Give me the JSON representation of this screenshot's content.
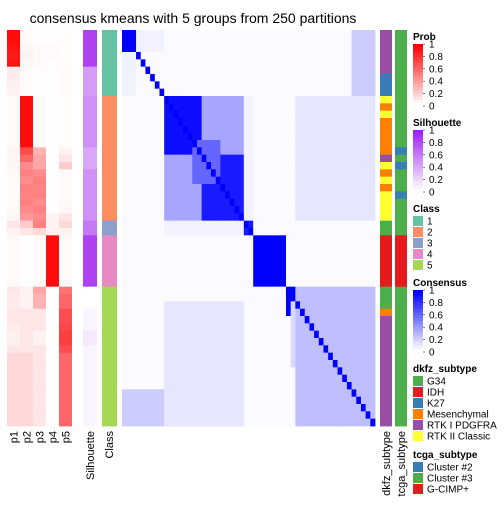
{
  "chart_data": {
    "type": "heatmap",
    "title": "consensus kmeans with 5 groups from 250 partitions",
    "prob_columns": [
      "p1",
      "p2",
      "p3",
      "p4",
      "p5"
    ],
    "annotation_columns": [
      "Silhouette",
      "Class",
      "dkfz_subtype",
      "tcga_subtype"
    ],
    "rows": 54,
    "class_groups": [
      {
        "class": "1",
        "start": 0,
        "end": 9
      },
      {
        "class": "2",
        "start": 9,
        "end": 26
      },
      {
        "class": "3",
        "start": 26,
        "end": 28
      },
      {
        "class": "4",
        "start": 28,
        "end": 35
      },
      {
        "class": "5",
        "start": 35,
        "end": 54
      }
    ],
    "row_class": [
      1,
      1,
      1,
      1,
      1,
      1,
      1,
      1,
      1,
      2,
      2,
      2,
      2,
      2,
      2,
      2,
      2,
      2,
      2,
      2,
      2,
      2,
      2,
      2,
      2,
      2,
      3,
      3,
      4,
      4,
      4,
      4,
      4,
      4,
      4,
      5,
      5,
      5,
      5,
      5,
      5,
      5,
      5,
      5,
      5,
      5,
      5,
      5,
      5,
      5,
      5,
      5,
      5,
      5
    ],
    "row_prob": [
      [
        0.95,
        0.02,
        0.01,
        0.01,
        0.01
      ],
      [
        0.95,
        0.02,
        0.01,
        0.01,
        0.01
      ],
      [
        0.92,
        0.03,
        0.02,
        0.02,
        0.01
      ],
      [
        0.9,
        0.05,
        0.02,
        0.02,
        0.01
      ],
      [
        0.92,
        0.04,
        0.02,
        0.01,
        0.01
      ],
      [
        0.08,
        0.02,
        0.01,
        0.01,
        0.02
      ],
      [
        0.08,
        0.02,
        0.01,
        0.01,
        0.02
      ],
      [
        0.06,
        0.02,
        0.01,
        0.01,
        0.02
      ],
      [
        0.05,
        0.02,
        0.01,
        0.01,
        0.02
      ],
      [
        0.02,
        0.95,
        0.02,
        0.0,
        0.01
      ],
      [
        0.02,
        0.95,
        0.02,
        0.0,
        0.01
      ],
      [
        0.02,
        0.95,
        0.02,
        0.0,
        0.01
      ],
      [
        0.02,
        0.95,
        0.02,
        0.0,
        0.01
      ],
      [
        0.02,
        0.95,
        0.02,
        0.0,
        0.01
      ],
      [
        0.02,
        0.95,
        0.02,
        0.0,
        0.01
      ],
      [
        0.02,
        0.95,
        0.02,
        0.0,
        0.01
      ],
      [
        0.05,
        0.7,
        0.3,
        0.0,
        0.05
      ],
      [
        0.04,
        0.6,
        0.35,
        0.0,
        0.1
      ],
      [
        0.03,
        0.45,
        0.35,
        0.0,
        0.2
      ],
      [
        0.02,
        0.5,
        0.45,
        0.0,
        0.02
      ],
      [
        0.02,
        0.45,
        0.5,
        0.0,
        0.02
      ],
      [
        0.02,
        0.5,
        0.48,
        0.0,
        0.02
      ],
      [
        0.02,
        0.48,
        0.5,
        0.0,
        0.02
      ],
      [
        0.02,
        0.5,
        0.45,
        0.0,
        0.02
      ],
      [
        0.02,
        0.45,
        0.5,
        0.0,
        0.03
      ],
      [
        0.03,
        0.4,
        0.45,
        0.05,
        0.1
      ],
      [
        0.1,
        0.2,
        0.5,
        0.05,
        0.15
      ],
      [
        0.05,
        0.1,
        0.15,
        0.05,
        0.05
      ],
      [
        0.02,
        0.0,
        0.02,
        0.95,
        0.02
      ],
      [
        0.02,
        0.0,
        0.02,
        0.95,
        0.02
      ],
      [
        0.02,
        0.0,
        0.02,
        0.95,
        0.02
      ],
      [
        0.02,
        0.0,
        0.02,
        0.95,
        0.02
      ],
      [
        0.02,
        0.0,
        0.02,
        0.95,
        0.02
      ],
      [
        0.02,
        0.0,
        0.02,
        0.95,
        0.02
      ],
      [
        0.02,
        0.0,
        0.02,
        0.95,
        0.02
      ],
      [
        0.1,
        0.05,
        0.35,
        0.0,
        0.55
      ],
      [
        0.08,
        0.05,
        0.3,
        0.0,
        0.6
      ],
      [
        0.08,
        0.05,
        0.3,
        0.0,
        0.6
      ],
      [
        0.1,
        0.1,
        0.1,
        0.0,
        0.7
      ],
      [
        0.1,
        0.1,
        0.1,
        0.0,
        0.7
      ],
      [
        0.08,
        0.1,
        0.1,
        0.0,
        0.72
      ],
      [
        0.06,
        0.1,
        0.05,
        0.0,
        0.75
      ],
      [
        0.06,
        0.1,
        0.05,
        0.0,
        0.75
      ],
      [
        0.1,
        0.1,
        0.1,
        0.0,
        0.7
      ],
      [
        0.15,
        0.15,
        0.1,
        0.0,
        0.6
      ],
      [
        0.15,
        0.15,
        0.1,
        0.0,
        0.6
      ],
      [
        0.15,
        0.15,
        0.1,
        0.0,
        0.6
      ],
      [
        0.15,
        0.15,
        0.1,
        0.0,
        0.6
      ],
      [
        0.15,
        0.15,
        0.1,
        0.0,
        0.6
      ],
      [
        0.15,
        0.15,
        0.1,
        0.0,
        0.6
      ],
      [
        0.15,
        0.15,
        0.1,
        0.0,
        0.6
      ],
      [
        0.15,
        0.15,
        0.1,
        0.0,
        0.6
      ],
      [
        0.15,
        0.15,
        0.1,
        0.0,
        0.6
      ],
      [
        0.15,
        0.15,
        0.1,
        0.0,
        0.6
      ]
    ],
    "row_silhouette": [
      0.85,
      0.85,
      0.85,
      0.85,
      0.85,
      0.45,
      0.45,
      0.45,
      0.45,
      0.5,
      0.5,
      0.5,
      0.5,
      0.5,
      0.5,
      0.5,
      0.4,
      0.4,
      0.4,
      0.5,
      0.5,
      0.5,
      0.5,
      0.5,
      0.5,
      0.5,
      0.6,
      0.6,
      0.85,
      0.85,
      0.85,
      0.85,
      0.85,
      0.85,
      0.85,
      0.0,
      0.0,
      0.0,
      0.05,
      0.05,
      0.05,
      0.1,
      0.1,
      0.05,
      0.05,
      0.05,
      0.05,
      0.05,
      0.05,
      0.05,
      0.05,
      0.05,
      0.05,
      0.05
    ],
    "row_dkfz": [
      "RTK I PDGFRA",
      "RTK I PDGFRA",
      "RTK I PDGFRA",
      "RTK I PDGFRA",
      "RTK I PDGFRA",
      "RTK I PDGFRA",
      "K27",
      "K27",
      "K27",
      "RTK II Classic",
      "Mesenchymal",
      "RTK II Classic",
      "Mesenchymal",
      "Mesenchymal",
      "Mesenchymal",
      "Mesenchymal",
      "Mesenchymal",
      "RTK I PDGFRA",
      "RTK II Classic",
      "Mesenchymal",
      "RTK II Classic",
      "Mesenchymal",
      "RTK II Classic",
      "RTK II Classic",
      "RTK II Classic",
      "RTK II Classic",
      "G34",
      "G34",
      "IDH",
      "IDH",
      "IDH",
      "IDH",
      "IDH",
      "IDH",
      "IDH",
      "G34",
      "G34",
      "G34",
      "Mesenchymal",
      "RTK I PDGFRA",
      "RTK I PDGFRA",
      "RTK I PDGFRA",
      "RTK I PDGFRA",
      "RTK I PDGFRA",
      "RTK I PDGFRA",
      "RTK I PDGFRA",
      "RTK I PDGFRA",
      "RTK I PDGFRA",
      "RTK I PDGFRA",
      "RTK I PDGFRA",
      "RTK I PDGFRA",
      "RTK I PDGFRA",
      "RTK I PDGFRA",
      "RTK I PDGFRA"
    ],
    "row_tcga": [
      "Cluster #3",
      "Cluster #3",
      "Cluster #3",
      "Cluster #3",
      "Cluster #3",
      "Cluster #3",
      "Cluster #3",
      "Cluster #3",
      "Cluster #3",
      "Cluster #3",
      "Cluster #3",
      "Cluster #3",
      "Cluster #3",
      "Cluster #3",
      "Cluster #3",
      "Cluster #3",
      "Cluster #2",
      "Cluster #3",
      "Cluster #2",
      "Cluster #3",
      "Cluster #3",
      "Cluster #3",
      "Cluster #2",
      "Cluster #3",
      "Cluster #3",
      "Cluster #3",
      "Cluster #3",
      "Cluster #3",
      "G-CIMP+",
      "G-CIMP+",
      "G-CIMP+",
      "G-CIMP+",
      "G-CIMP+",
      "G-CIMP+",
      "G-CIMP+",
      "Cluster #3",
      "Cluster #3",
      "Cluster #3",
      "Cluster #3",
      "Cluster #3",
      "Cluster #3",
      "Cluster #3",
      "Cluster #3",
      "Cluster #3",
      "Cluster #3",
      "Cluster #3",
      "Cluster #3",
      "Cluster #3",
      "Cluster #3",
      "Cluster #3",
      "Cluster #3",
      "Cluster #3",
      "Cluster #3",
      "Cluster #3"
    ],
    "consensus_blocks": [
      {
        "rows": [
          0,
          3
        ],
        "cols": [
          0,
          3
        ],
        "value": 1.0
      },
      {
        "rows": [
          0,
          3
        ],
        "cols": [
          3,
          9
        ],
        "value": 0.05
      },
      {
        "rows": [
          3,
          9
        ],
        "cols": [
          0,
          3
        ],
        "value": 0.05
      },
      {
        "rows": [
          0,
          9
        ],
        "cols": [
          49,
          54
        ],
        "value": 0.2
      },
      {
        "rows": [
          49,
          54
        ],
        "cols": [
          0,
          9
        ],
        "value": 0.2
      },
      {
        "rows": [
          9,
          17
        ],
        "cols": [
          9,
          17
        ],
        "value": 0.95
      },
      {
        "rows": [
          9,
          17
        ],
        "cols": [
          17,
          26
        ],
        "value": 0.35
      },
      {
        "rows": [
          17,
          26
        ],
        "cols": [
          9,
          17
        ],
        "value": 0.35
      },
      {
        "rows": [
          17,
          26
        ],
        "cols": [
          17,
          26
        ],
        "value": 0.9
      },
      {
        "rows": [
          15,
          21
        ],
        "cols": [
          15,
          21
        ],
        "value": 0.6
      },
      {
        "rows": [
          9,
          26
        ],
        "cols": [
          37,
          54
        ],
        "value": 0.1
      },
      {
        "rows": [
          37,
          54
        ],
        "cols": [
          9,
          26
        ],
        "value": 0.1
      },
      {
        "rows": [
          26,
          28
        ],
        "cols": [
          26,
          28
        ],
        "value": 0.9
      },
      {
        "rows": [
          26,
          28
        ],
        "cols": [
          9,
          26
        ],
        "value": 0.05
      },
      {
        "rows": [
          9,
          26
        ],
        "cols": [
          26,
          28
        ],
        "value": 0.05
      },
      {
        "rows": [
          28,
          35
        ],
        "cols": [
          28,
          35
        ],
        "value": 1.0
      },
      {
        "rows": [
          35,
          39
        ],
        "cols": [
          35,
          39
        ],
        "value": 1.0
      },
      {
        "rows": [
          39,
          54
        ],
        "cols": [
          39,
          54
        ],
        "value": 0.3
      },
      {
        "rows": [
          36,
          46
        ],
        "cols": [
          36,
          46
        ],
        "value": 0.15
      },
      {
        "rows": [
          35,
          54
        ],
        "cols": [
          37,
          54
        ],
        "value": 0.25
      }
    ],
    "consensus_diagonal_value": 1.0,
    "legends": {
      "prob": {
        "title": "Prob",
        "ticks": [
          "1",
          "0.8",
          "0.6",
          "0.4",
          "0.2",
          "0"
        ]
      },
      "silhouette": {
        "title": "Silhouette",
        "ticks": [
          "1",
          "0.8",
          "0.6",
          "0.4",
          "0.2",
          "0"
        ]
      },
      "class": {
        "title": "Class",
        "items": [
          {
            "label": "1",
            "color": "#66c2a5"
          },
          {
            "label": "2",
            "color": "#fc8d62"
          },
          {
            "label": "3",
            "color": "#8da0cb"
          },
          {
            "label": "4",
            "color": "#e78ac3"
          },
          {
            "label": "5",
            "color": "#a6d854"
          }
        ]
      },
      "consensus": {
        "title": "Consensus",
        "ticks": [
          "1",
          "0.8",
          "0.6",
          "0.4",
          "0.2",
          "0"
        ]
      },
      "dkfz_subtype": {
        "title": "dkfz_subtype",
        "items": [
          {
            "label": "G34",
            "color": "#4daf4a"
          },
          {
            "label": "IDH",
            "color": "#e41a1c"
          },
          {
            "label": "K27",
            "color": "#377eb8"
          },
          {
            "label": "Mesenchymal",
            "color": "#ff7f00"
          },
          {
            "label": "RTK I PDGFRA",
            "color": "#984ea3"
          },
          {
            "label": "RTK II Classic",
            "color": "#ffff33"
          }
        ]
      },
      "tcga_subtype": {
        "title": "tcga_subtype",
        "items": [
          {
            "label": "Cluster #2",
            "color": "#377eb8"
          },
          {
            "label": "Cluster #3",
            "color": "#4daf4a"
          },
          {
            "label": "G-CIMP+",
            "color": "#e41a1c"
          }
        ]
      }
    },
    "colors": {
      "prob_high": "#ff0000",
      "silhouette_high": "#a020f0",
      "consensus_high": "#0000ff",
      "low": "#ffffff"
    }
  }
}
